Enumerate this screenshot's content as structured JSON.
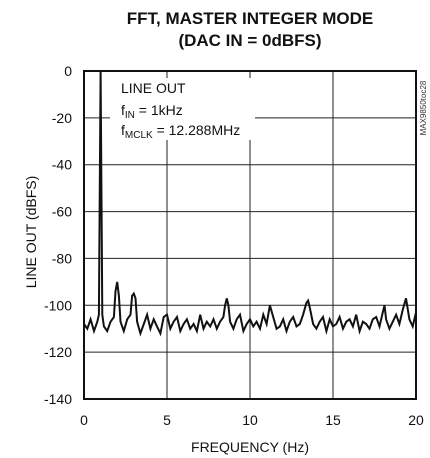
{
  "chart_data": {
    "type": "line",
    "title": "FFT, MASTER INTEGER MODE",
    "subtitle": "(DAC IN = 0dBFS)",
    "xlabel": "FREQUENCY (Hz)",
    "ylabel": "LINE OUT (dBFS)",
    "xlim": [
      0,
      20
    ],
    "ylim": [
      -140,
      0
    ],
    "xticks": [
      0,
      5,
      10,
      15,
      20
    ],
    "yticks": [
      0,
      -20,
      -40,
      -60,
      -80,
      -100,
      -120,
      -140
    ],
    "grid": true,
    "annotation": {
      "line1": "LINE OUT",
      "line2_main": "f",
      "line2_sub": "IN",
      "line2_rest": " = 1kHz",
      "line3_main": "f",
      "line3_sub": "MCLK",
      "line3_rest": " = 12.288MHz"
    },
    "side_code": "MAX9850toc28",
    "series": [
      {
        "x": [
          0.0,
          0.2,
          0.4,
          0.6,
          0.8,
          0.9,
          1.0,
          1.1,
          1.2,
          1.4,
          1.6,
          1.8,
          1.9,
          2.0,
          2.1,
          2.2,
          2.4,
          2.6,
          2.8,
          2.9,
          3.0,
          3.1,
          3.2,
          3.4,
          3.6,
          3.8,
          4.0,
          4.2,
          4.4,
          4.6,
          4.8,
          5.0,
          5.2,
          5.4,
          5.6,
          5.8,
          6.0,
          6.2,
          6.4,
          6.6,
          6.8,
          7.0,
          7.2,
          7.4,
          7.6,
          7.8,
          8.0,
          8.2,
          8.4,
          8.5,
          8.6,
          8.7,
          8.8,
          9.0,
          9.2,
          9.4,
          9.6,
          9.8,
          10.0,
          10.2,
          10.4,
          10.6,
          10.8,
          11.0,
          11.2,
          11.4,
          11.6,
          11.8,
          12.0,
          12.2,
          12.4,
          12.6,
          12.8,
          13.0,
          13.2,
          13.4,
          13.5,
          13.6,
          13.8,
          14.0,
          14.2,
          14.4,
          14.6,
          14.8,
          15.0,
          15.2,
          15.4,
          15.6,
          15.8,
          16.0,
          16.2,
          16.4,
          16.6,
          16.8,
          17.0,
          17.2,
          17.4,
          17.6,
          17.8,
          18.0,
          18.1,
          18.2,
          18.4,
          18.6,
          18.8,
          19.0,
          19.2,
          19.4,
          19.6,
          19.8,
          20.0
        ],
        "values": [
          -108,
          -110,
          -106,
          -111,
          -107,
          -104,
          0,
          -104,
          -109,
          -111,
          -107,
          -105,
          -94,
          -90,
          -96,
          -107,
          -111,
          -106,
          -104,
          -96,
          -95,
          -97,
          -107,
          -112,
          -108,
          -104,
          -110,
          -106,
          -109,
          -112,
          -105,
          -104,
          -110,
          -107,
          -105,
          -111,
          -108,
          -106,
          -110,
          -108,
          -111,
          -104,
          -110,
          -107,
          -109,
          -106,
          -110,
          -107,
          -105,
          -100,
          -97,
          -100,
          -107,
          -110,
          -106,
          -104,
          -111,
          -108,
          -106,
          -109,
          -107,
          -110,
          -104,
          -108,
          -100,
          -105,
          -110,
          -109,
          -106,
          -111,
          -107,
          -105,
          -109,
          -108,
          -104,
          -99,
          -98,
          -101,
          -108,
          -110,
          -107,
          -105,
          -111,
          -106,
          -109,
          -108,
          -105,
          -110,
          -107,
          -106,
          -109,
          -104,
          -111,
          -107,
          -108,
          -110,
          -106,
          -105,
          -109,
          -103,
          -100,
          -106,
          -110,
          -107,
          -104,
          -108,
          -102,
          -97,
          -106,
          -109,
          -103
        ]
      }
    ]
  }
}
